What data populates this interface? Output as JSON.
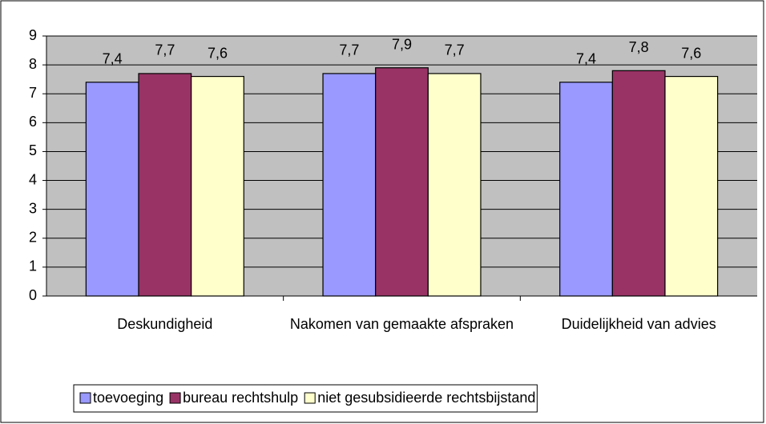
{
  "chart_data": {
    "type": "bar",
    "categories": [
      "Deskundigheid",
      "Nakomen van gemaakte afspraken",
      "Duidelijkheid van advies"
    ],
    "series": [
      {
        "name": "toevoeging",
        "color": "#9999ff",
        "values": [
          7.4,
          7.7,
          7.4
        ],
        "value_labels": [
          "7,4",
          "7,7",
          "7,4"
        ]
      },
      {
        "name": "bureau rechtshulp",
        "color": "#993366",
        "values": [
          7.7,
          7.9,
          7.8
        ],
        "value_labels": [
          "7,7",
          "7,9",
          "7,8"
        ]
      },
      {
        "name": "niet gesubsidieerde rechtsbijstand",
        "color": "#ffffcc",
        "values": [
          7.6,
          7.7,
          7.6
        ],
        "value_labels": [
          "7,6",
          "7,7",
          "7,6"
        ]
      }
    ],
    "ylim": [
      0,
      9
    ],
    "yticks": [
      0,
      1,
      2,
      3,
      4,
      5,
      6,
      7,
      8,
      9
    ],
    "grid": true,
    "plot_background": "#c0c0c0",
    "legend": "bottom"
  }
}
